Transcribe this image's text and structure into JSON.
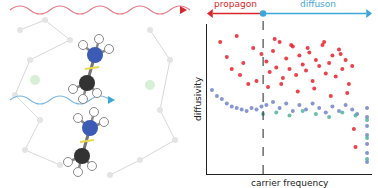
{
  "chart_data": {
    "type": "scatter",
    "xlabel": "carrier frequency",
    "ylabel": "diffusivity",
    "xlim": [
      0,
      100
    ],
    "ylim": [
      0,
      100
    ],
    "tick_labels": false,
    "boundary": 34,
    "annotations": [
      {
        "text": "propagon",
        "color": "#d9262e"
      },
      {
        "text": "diffuson",
        "color": "#3fa6d9"
      }
    ],
    "series": [
      {
        "color": "#e8202a",
        "x": [
          8,
          12,
          15,
          18,
          20,
          22,
          25,
          28,
          30,
          33,
          36,
          38,
          40,
          42,
          44,
          46,
          48,
          50,
          52,
          54,
          56,
          58,
          60,
          62,
          64,
          66,
          68,
          70,
          72,
          74,
          76,
          78,
          80,
          82,
          84,
          86,
          88,
          90,
          37,
          45,
          55,
          65,
          75,
          85,
          41,
          51,
          61,
          71,
          81,
          89
        ],
        "values": [
          88,
          78,
          70,
          92,
          66,
          74,
          60,
          84,
          62,
          80,
          75,
          68,
          82,
          71,
          88,
          64,
          77,
          70,
          85,
          66,
          79,
          73,
          69,
          81,
          62,
          76,
          72,
          86,
          67,
          74,
          79,
          65,
          83,
          70,
          76,
          60,
          72,
          18,
          58,
          60,
          55,
          57,
          52,
          54,
          90,
          86,
          84,
          88,
          80,
          30
        ]
      },
      {
        "color": "#7084c9",
        "x": [
          3,
          6,
          9,
          12,
          15,
          18,
          21,
          24,
          27,
          30,
          33,
          36,
          40,
          44,
          48,
          52,
          56,
          60,
          64,
          68,
          72,
          76,
          80,
          84,
          88,
          91,
          97,
          97,
          97,
          97,
          97,
          97,
          97
        ],
        "values": [
          56,
          52,
          50,
          47,
          45,
          44,
          43,
          42,
          44,
          43,
          45,
          46,
          48,
          44,
          47,
          42,
          46,
          43,
          47,
          44,
          41,
          45,
          42,
          46,
          43,
          40,
          8,
          14,
          20,
          26,
          32,
          38,
          44
        ]
      },
      {
        "color": "#4fb39a",
        "x": [
          34,
          42,
          50,
          58,
          66,
          74,
          82,
          90,
          97,
          97,
          97
        ],
        "values": [
          40,
          41,
          39,
          42,
          40,
          38,
          41,
          39,
          10,
          24,
          36
        ]
      }
    ]
  }
}
